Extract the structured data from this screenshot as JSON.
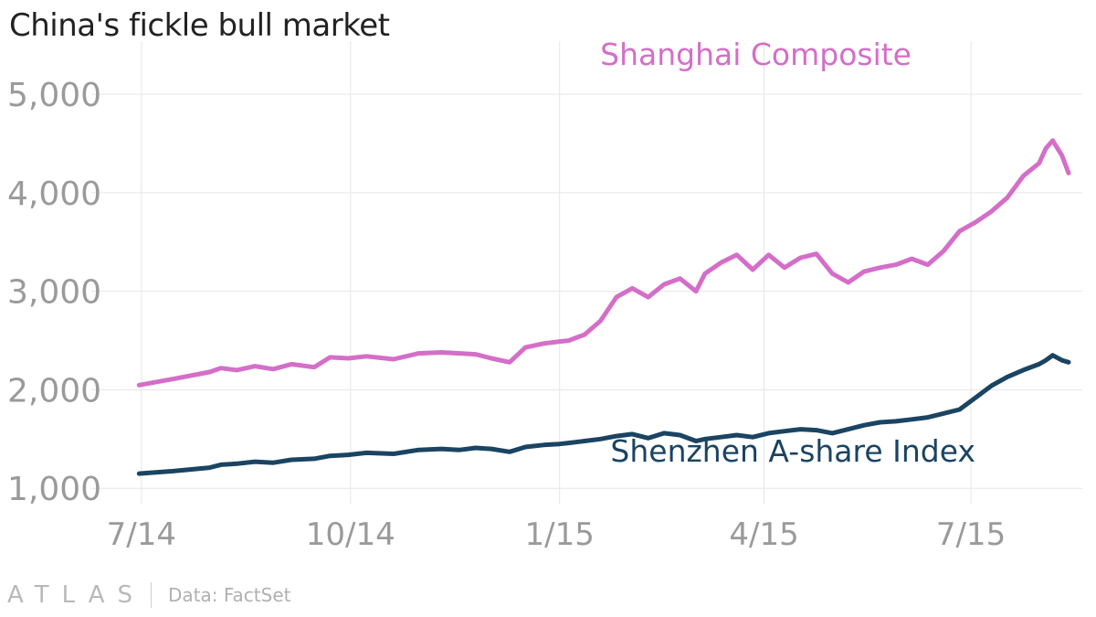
{
  "title": "China's fickle bull market",
  "source": "Data: FactSet",
  "logo": "ATLAS",
  "colors": {
    "shanghai": "#d46ec8",
    "shenzhen": "#1a4462",
    "grid": "#e6e6e6",
    "tick": "#9a9a9a"
  },
  "chart_data": {
    "type": "line",
    "title": "China's fickle bull market",
    "xlabel": "",
    "ylabel": "",
    "ylim": [
      900,
      5400
    ],
    "xlim": [
      "2014-06-17",
      "2015-08-15"
    ],
    "yticks": [
      1000,
      2000,
      3000,
      4000,
      5000
    ],
    "ytick_labels": [
      "1,000",
      "2,000",
      "3,000",
      "4,000",
      "5,000"
    ],
    "xticks": [
      "2014-07-01",
      "2014-10-01",
      "2015-01-01",
      "2015-04-01",
      "2015-07-01"
    ],
    "xtick_labels": [
      "7/14",
      "10/14",
      "1/15",
      "4/15",
      "7/15"
    ],
    "grid": true,
    "series": [
      {
        "name": "Shanghai Composite",
        "color": "#d46ec8",
        "points": [
          [
            "2014-06-30",
            2048
          ],
          [
            "2014-07-15",
            2110
          ],
          [
            "2014-07-31",
            2180
          ],
          [
            "2014-08-05",
            2220
          ],
          [
            "2014-08-12",
            2200
          ],
          [
            "2014-08-20",
            2240
          ],
          [
            "2014-08-28",
            2210
          ],
          [
            "2014-09-05",
            2260
          ],
          [
            "2014-09-15",
            2230
          ],
          [
            "2014-09-22",
            2330
          ],
          [
            "2014-09-30",
            2320
          ],
          [
            "2014-10-08",
            2340
          ],
          [
            "2014-10-20",
            2310
          ],
          [
            "2014-10-31",
            2370
          ],
          [
            "2014-11-10",
            2380
          ],
          [
            "2014-11-18",
            2370
          ],
          [
            "2014-11-25",
            2360
          ],
          [
            "2014-12-02",
            2320
          ],
          [
            "2014-12-10",
            2280
          ],
          [
            "2014-12-17",
            2430
          ],
          [
            "2014-12-25",
            2470
          ],
          [
            "2015-01-01",
            2490
          ],
          [
            "2015-01-05",
            2500
          ],
          [
            "2015-01-12",
            2560
          ],
          [
            "2015-01-19",
            2700
          ],
          [
            "2015-01-26",
            2940
          ],
          [
            "2015-02-02",
            3030
          ],
          [
            "2015-02-09",
            2940
          ],
          [
            "2015-02-16",
            3070
          ],
          [
            "2015-02-23",
            3130
          ],
          [
            "2015-03-02",
            3000
          ],
          [
            "2015-03-06",
            3180
          ],
          [
            "2015-03-13",
            3290
          ],
          [
            "2015-03-20",
            3370
          ],
          [
            "2015-03-27",
            3220
          ],
          [
            "2015-04-03",
            3370
          ],
          [
            "2015-04-10",
            3240
          ],
          [
            "2015-04-17",
            3340
          ],
          [
            "2015-04-24",
            3380
          ],
          [
            "2015-05-01",
            3180
          ],
          [
            "2015-05-08",
            3090
          ],
          [
            "2015-05-15",
            3200
          ],
          [
            "2015-05-22",
            3240
          ],
          [
            "2015-05-29",
            3270
          ],
          [
            "2015-06-05",
            3330
          ],
          [
            "2015-06-12",
            3270
          ],
          [
            "2015-06-19",
            3410
          ],
          [
            "2015-06-26",
            3610
          ],
          [
            "2015-07-03",
            3700
          ],
          [
            "2015-07-10",
            3810
          ],
          [
            "2015-07-17",
            3950
          ],
          [
            "2015-07-24",
            4170
          ],
          [
            "2015-07-31",
            4300
          ],
          [
            "2015-08-03",
            4450
          ],
          [
            "2015-08-06",
            4530
          ],
          [
            "2015-08-10",
            4380
          ],
          [
            "2015-08-13",
            4200
          ]
        ]
      },
      {
        "name": "Shenzhen A-share Index",
        "color": "#1a4462",
        "points": [
          [
            "2014-06-30",
            1150
          ],
          [
            "2014-07-15",
            1175
          ],
          [
            "2014-07-31",
            1210
          ],
          [
            "2014-08-05",
            1240
          ],
          [
            "2014-08-12",
            1250
          ],
          [
            "2014-08-20",
            1270
          ],
          [
            "2014-08-28",
            1260
          ],
          [
            "2014-09-05",
            1290
          ],
          [
            "2014-09-15",
            1300
          ],
          [
            "2014-09-22",
            1330
          ],
          [
            "2014-09-30",
            1340
          ],
          [
            "2014-10-08",
            1360
          ],
          [
            "2014-10-20",
            1350
          ],
          [
            "2014-10-31",
            1390
          ],
          [
            "2014-11-10",
            1400
          ],
          [
            "2014-11-18",
            1390
          ],
          [
            "2014-11-25",
            1410
          ],
          [
            "2014-12-02",
            1400
          ],
          [
            "2014-12-10",
            1370
          ],
          [
            "2014-12-17",
            1420
          ],
          [
            "2014-12-25",
            1440
          ],
          [
            "2015-01-01",
            1450
          ],
          [
            "2015-01-05",
            1460
          ],
          [
            "2015-01-12",
            1480
          ],
          [
            "2015-01-19",
            1500
          ],
          [
            "2015-01-26",
            1530
          ],
          [
            "2015-02-02",
            1550
          ],
          [
            "2015-02-09",
            1510
          ],
          [
            "2015-02-16",
            1560
          ],
          [
            "2015-02-23",
            1540
          ],
          [
            "2015-03-02",
            1480
          ],
          [
            "2015-03-06",
            1500
          ],
          [
            "2015-03-13",
            1520
          ],
          [
            "2015-03-20",
            1540
          ],
          [
            "2015-03-27",
            1520
          ],
          [
            "2015-04-03",
            1560
          ],
          [
            "2015-04-10",
            1580
          ],
          [
            "2015-04-17",
            1600
          ],
          [
            "2015-04-24",
            1590
          ],
          [
            "2015-05-01",
            1560
          ],
          [
            "2015-05-08",
            1600
          ],
          [
            "2015-05-15",
            1640
          ],
          [
            "2015-05-22",
            1670
          ],
          [
            "2015-05-29",
            1680
          ],
          [
            "2015-06-05",
            1700
          ],
          [
            "2015-06-12",
            1720
          ],
          [
            "2015-06-19",
            1760
          ],
          [
            "2015-06-26",
            1800
          ],
          [
            "2015-07-03",
            1920
          ],
          [
            "2015-07-10",
            2040
          ],
          [
            "2015-07-17",
            2130
          ],
          [
            "2015-07-24",
            2200
          ],
          [
            "2015-07-31",
            2260
          ],
          [
            "2015-08-03",
            2300
          ],
          [
            "2015-08-06",
            2350
          ],
          [
            "2015-08-10",
            2300
          ],
          [
            "2015-08-13",
            2280
          ]
        ]
      }
    ],
    "annotations": [
      {
        "text": "Shanghai Composite",
        "series": 0
      },
      {
        "text": "Shenzhen A-share Index",
        "series": 1
      }
    ]
  }
}
